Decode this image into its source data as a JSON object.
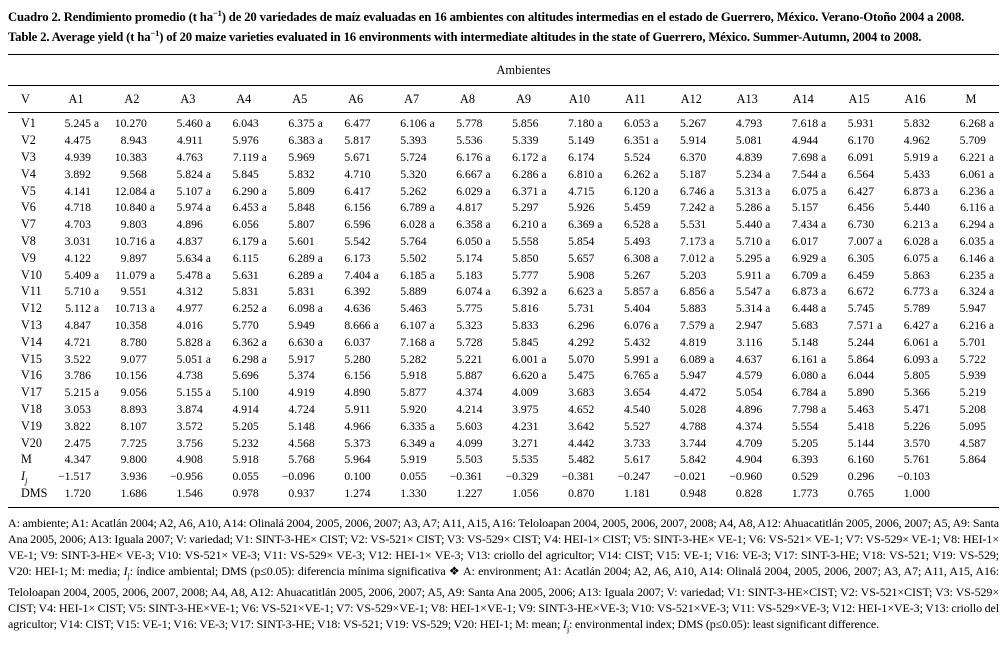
{
  "title": {
    "es_prefix": "Cuadro 2. Rendimiento promedio (t ha",
    "es_sup": "−1",
    "es_suffix": ") de 20 variedades de maíz evaluadas en 16 ambientes con altitudes intermedias en el estado de Guerrero, México. Verano-Otoño 2004 a 2008.",
    "en_prefix": "Table 2. Average yield (t ha",
    "en_sup": "−1",
    "en_suffix": ") of 20 maize varieties evaluated in 16 environments with intermediate altitudes in the state of Guerrero, México. Summer-Autumn, 2004 to 2008."
  },
  "table": {
    "group_header": "Ambientes",
    "columns": [
      "V",
      "A1",
      "A2",
      "A3",
      "A4",
      "A5",
      "A6",
      "A7",
      "A8",
      "A9",
      "A10",
      "A11",
      "A12",
      "A13",
      "A14",
      "A15",
      "A16",
      "M"
    ],
    "rows": [
      {
        "label": "V1",
        "values": [
          "5.245 a",
          "10.270",
          "5.460 a",
          "6.043",
          "6.375 a",
          "6.477",
          "6.106 a",
          "5.778",
          "5.856",
          "7.180 a",
          "6.053 a",
          "5.267",
          "4.793",
          "7.618 a",
          "5.931",
          "5.832",
          "6.268 a"
        ]
      },
      {
        "label": "V2",
        "values": [
          "4.475",
          "8.943",
          "4.911",
          "5.976",
          "6.383 a",
          "5.817",
          "5.393",
          "5.536",
          "5.339",
          "5.149",
          "6.351 a",
          "5.914",
          "5.081",
          "4.944",
          "6.170",
          "4.962",
          "5.709"
        ]
      },
      {
        "label": "V3",
        "values": [
          "4.939",
          "10.383",
          "4.763",
          "7.119 a",
          "5.969",
          "5.671",
          "5.724",
          "6.176 a",
          "6.172 a",
          "6.174",
          "5.524",
          "6.370",
          "4.839",
          "7.698 a",
          "6.091",
          "5.919 a",
          "6.221 a"
        ]
      },
      {
        "label": "V4",
        "values": [
          "3.892",
          "9.568",
          "5.824 a",
          "5.845",
          "5.832",
          "4.710",
          "5.320",
          "6.667 a",
          "6.286 a",
          "6.810 a",
          "6.262 a",
          "5.187",
          "5.234 a",
          "7.544 a",
          "6.564",
          "5.433",
          "6.061 a"
        ]
      },
      {
        "label": "V5",
        "values": [
          "4.141",
          "12.084 a",
          "5.107 a",
          "6.290 a",
          "5.809",
          "6.417",
          "5.262",
          "6.029 a",
          "6.371 a",
          "4.715",
          "6.120 a",
          "6.746 a",
          "5.313 a",
          "6.075 a",
          "6.427",
          "6.873 a",
          "6.236 a"
        ]
      },
      {
        "label": "V6",
        "values": [
          "4.718",
          "10.840 a",
          "5.974 a",
          "6.453 a",
          "5.848",
          "6.156",
          "6.789 a",
          "4.817",
          "5.297",
          "5.926",
          "5.459",
          "7.242 a",
          "5.286 a",
          "5.157",
          "6.456",
          "5.440",
          "6.116 a"
        ]
      },
      {
        "label": "V7",
        "values": [
          "4.703",
          "9.803",
          "4.896",
          "6.056",
          "5.807",
          "6.596",
          "6.028 a",
          "6.358 a",
          "6.210 a",
          "6.369 a",
          "6.528 a",
          "5.531",
          "5.440 a",
          "7.434 a",
          "6.730",
          "6.213 a",
          "6.294 a"
        ]
      },
      {
        "label": "V8",
        "values": [
          "3.031",
          "10.716 a",
          "4.837",
          "6.179 a",
          "5.601",
          "5.542",
          "5.764",
          "6.050 a",
          "5.558",
          "5.854",
          "5.493",
          "7.173 a",
          "5.710 a",
          "6.017",
          "7.007 a",
          "6.028 a",
          "6.035 a"
        ]
      },
      {
        "label": "V9",
        "values": [
          "4.122",
          "9.897",
          "5.634 a",
          "6.115",
          "6.289 a",
          "6.173",
          "5.502",
          "5.174",
          "5.850",
          "5.657",
          "6.308 a",
          "7.012 a",
          "5.295 a",
          "6.929 a",
          "6.305",
          "6.075 a",
          "6.146 a"
        ]
      },
      {
        "label": "V10",
        "values": [
          "5.409 a",
          "11.079 a",
          "5.478 a",
          "5.631",
          "6.289 a",
          "7.404 a",
          "6.185 a",
          "5.183",
          "5.777",
          "5.908",
          "5.267",
          "5.203",
          "5.911 a",
          "6.709 a",
          "6.459",
          "5.863",
          "6.235 a"
        ]
      },
      {
        "label": "V11",
        "values": [
          "5.710 a",
          "9.551",
          "4.312",
          "5.831",
          "5.831",
          "6.392",
          "5.889",
          "6.074 a",
          "6.392 a",
          "6.623 a",
          "5.857 a",
          "6.856 a",
          "5.547 a",
          "6.873 a",
          "6.672",
          "6.773 a",
          "6.324 a"
        ]
      },
      {
        "label": "V12",
        "values": [
          "5.112 a",
          "10.713 a",
          "4.977",
          "6.252 a",
          "6.098 a",
          "4.636",
          "5.463",
          "5.775",
          "5.816",
          "5.731",
          "5.404",
          "5.883",
          "5.314 a",
          "6.448 a",
          "5.745",
          "5.789",
          "5.947"
        ]
      },
      {
        "label": "V13",
        "values": [
          "4.847",
          "10.358",
          "4.016",
          "5.770",
          "5.949",
          "8.666 a",
          "6.107 a",
          "5.323",
          "5.833",
          "6.296",
          "6.076 a",
          "7.579 a",
          "2.947",
          "5.683",
          "7.571 a",
          "6.427 a",
          "6.216 a"
        ]
      },
      {
        "label": "V14",
        "values": [
          "4.721",
          "8.780",
          "5.828 a",
          "6.362 a",
          "6.630 a",
          "6.037",
          "7.168 a",
          "5.728",
          "5.845",
          "4.292",
          "5.432",
          "4.819",
          "3.116",
          "5.148",
          "5.244",
          "6.061 a",
          "5.701"
        ]
      },
      {
        "label": "V15",
        "values": [
          "3.522",
          "9.077",
          "5.051 a",
          "6.298 a",
          "5.917",
          "5.280",
          "5.282",
          "5.221",
          "6.001 a",
          "5.070",
          "5.991 a",
          "6.089 a",
          "4.637",
          "6.161 a",
          "5.864",
          "6.093 a",
          "5.722"
        ]
      },
      {
        "label": "V16",
        "values": [
          "3.786",
          "10.156",
          "4.738",
          "5.696",
          "5.374",
          "6.156",
          "5.918",
          "5.887",
          "6.620 a",
          "5.475",
          "6.765 a",
          "5.947",
          "4.579",
          "6.080 a",
          "6.044",
          "5.805",
          "5.939"
        ]
      },
      {
        "label": "V17",
        "values": [
          "5.215 a",
          "9.056",
          "5.155 a",
          "5.100",
          "4.919",
          "4.890",
          "5.877",
          "4.374",
          "4.009",
          "3.683",
          "3.654",
          "4.472",
          "5.054",
          "6.784 a",
          "5.890",
          "5.366",
          "5.219"
        ]
      },
      {
        "label": "V18",
        "values": [
          "3.053",
          "8.893",
          "3.874",
          "4.914",
          "4.724",
          "5.911",
          "5.920",
          "4.214",
          "3.975",
          "4.652",
          "4.540",
          "5.028",
          "4.896",
          "7.798 a",
          "5.463",
          "5.471",
          "5.208"
        ]
      },
      {
        "label": "V19",
        "values": [
          "3.822",
          "8.107",
          "3.572",
          "5.205",
          "5.148",
          "4.966",
          "6.335 a",
          "5.603",
          "4.231",
          "3.642",
          "5.527",
          "4.788",
          "4.374",
          "5.554",
          "5.418",
          "5.226",
          "5.095"
        ]
      },
      {
        "label": "V20",
        "values": [
          "2.475",
          "7.725",
          "3.756",
          "5.232",
          "4.568",
          "5.373",
          "6.349 a",
          "4.099",
          "3.271",
          "4.442",
          "3.733",
          "3.744",
          "4.709",
          "5.205",
          "5.144",
          "3.570",
          "4.587"
        ]
      },
      {
        "label": "M",
        "values": [
          "4.347",
          "9.800",
          "4.908",
          "5.918",
          "5.768",
          "5.964",
          "5.919",
          "5.503",
          "5.535",
          "5.482",
          "5.617",
          "5.842",
          "4.904",
          "6.393",
          "6.160",
          "5.761",
          "5.864"
        ]
      },
      {
        "label": "I",
        "label_sub": "j",
        "values": [
          "−1.517",
          "3.936",
          "−0.956",
          "0.055",
          "−0.096",
          "0.100",
          "0.055",
          "−0.361",
          "−0.329",
          "−0.381",
          "−0.247",
          "−0.021",
          "−0.960",
          "0.529",
          "0.296",
          "−0.103",
          ""
        ]
      },
      {
        "label": "DMS",
        "values": [
          "1.720",
          "1.686",
          "1.546",
          "0.978",
          "0.937",
          "1.274",
          "1.330",
          "1.227",
          "1.056",
          "0.870",
          "1.181",
          "0.948",
          "0.828",
          "1.773",
          "0.765",
          "1.000",
          ""
        ]
      }
    ]
  },
  "footnote": {
    "parts": [
      {
        "text": "A: ambiente; A1: Acatlán 2004; A2, A6, A10, A14: Olinalá 2004, 2005, 2006, 2007; A3, A7; A11, A15, A16: Teloloapan 2004, 2005, 2006, 2007, 2008; A4, A8, A12: Ahuacatitlán 2005, 2006, 2007; A5, A9: Santa Ana 2005, 2006; A13: Iguala 2007; V: variedad; V1: SINT-3-HE× CIST; V2: VS-521× CIST; V3: VS-529× CIST; V4: HEI-1× CIST; V5: SINT-3-HE× VE-1; V6: VS-521× VE-1; V7: VS-529× VE-1; V8: HEI-1× VE-1; V9: SINT-3-HE× VE-3; V10: VS-521× VE-3; V11: VS-529× VE-3; V12: HEI-1× VE-3; V13: criollo del agricultor; V14: CIST; V15: VE-1; V16: VE-3; V17: SINT-3-HE; V18: VS-521; V19: VS-529; V20: HEI-1; M: media; "
      },
      {
        "isub": true,
        "base": "I",
        "sub": "j"
      },
      {
        "text": ": índice ambiental; DMS (p≤0.05): diferencia mínima significativa ❖ A: environment; A1: Acatlán 2004; A2, A6, A10, A14: Olinalá 2004, 2005, 2006, 2007; A3, A7; A11, A15, A16: Teloloapan 2004, 2005, 2006, 2007, 2008; A4, A8, A12: Ahuacatitlán 2005, 2006, 2007; A5, A9: Santa Ana 2005, 2006; A13: Iguala 2007; V: variedad; V1: SINT-3-HE×CIST; V2: VS-521×CIST; V3: VS-529× CIST; V4: HEI-1× CIST; V5: SINT-3-HE×VE-1; V6: VS-521×VE-1; V7: VS-529×VE-1; V8: HEI-1×VE-1; V9: SINT-3-HE×VE-3; V10: VS-521×VE-3; V11: VS-529×VE-3; V12: HEI-1×VE-3; V13: criollo del agricultor; V14: CIST; V15: VE-1; V16: VE-3; V17: SINT-3-HE; V18: VS-521; V19: VS-529; V20: HEI-1; M: mean; "
      },
      {
        "isub": true,
        "base": "I",
        "sub": "j"
      },
      {
        "text": ": environmental index; DMS (p≤0.05): least significant difference."
      }
    ]
  }
}
